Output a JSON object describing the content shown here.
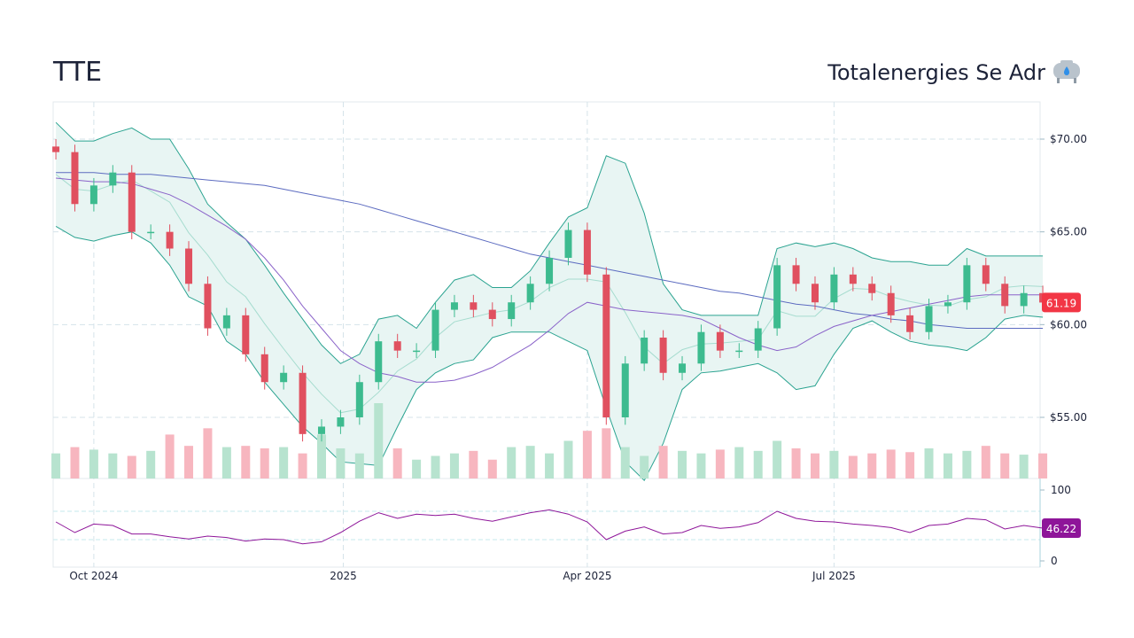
{
  "header": {
    "ticker": "TTE",
    "company": "Totalenergies Se Adr",
    "icon": "gas-tank-icon"
  },
  "colors": {
    "up": "#3dbb8f",
    "down": "#e0505f",
    "up_volume": "#b7e3cf",
    "down_volume": "#f7b6bf",
    "band_line": "#2aa390",
    "band_fill": "#e8f5f3",
    "band_mid": "#a6dccf",
    "sma_long": "#5c6bc0",
    "sma_short": "#8a63c9",
    "rsi": "#8e1599",
    "last_price_tag": "#f23645",
    "rsi_tag": "#8e1599"
  },
  "chart_data": {
    "type": "candlestick",
    "x_range": [
      "2024-09-16",
      "2025-09-15"
    ],
    "x_ticks": [
      {
        "label": "Oct 2024",
        "date": "2024-10-01"
      },
      {
        "label": "2025",
        "date": "2025-01-01"
      },
      {
        "label": "Apr 2025",
        "date": "2025-04-01"
      },
      {
        "label": "Jul 2025",
        "date": "2025-07-01"
      }
    ],
    "price_range": [
      51.2,
      72
    ],
    "price_ticks": [
      {
        "label": "$70.00",
        "value": 70
      },
      {
        "label": "$65.00",
        "value": 65
      },
      {
        "label": "$60.00",
        "value": 60
      },
      {
        "label": "$55.00",
        "value": 55
      }
    ],
    "last_price": "61.19",
    "dates": [
      "2024-09-17",
      "2024-09-24",
      "2024-10-01",
      "2024-10-08",
      "2024-10-15",
      "2024-10-22",
      "2024-10-29",
      "2024-11-05",
      "2024-11-12",
      "2024-11-19",
      "2024-11-26",
      "2024-12-03",
      "2024-12-10",
      "2024-12-17",
      "2024-12-24",
      "2024-12-31",
      "2025-01-07",
      "2025-01-14",
      "2025-01-21",
      "2025-01-28",
      "2025-02-04",
      "2025-02-11",
      "2025-02-18",
      "2025-02-25",
      "2025-03-04",
      "2025-03-11",
      "2025-03-18",
      "2025-03-25",
      "2025-04-01",
      "2025-04-08",
      "2025-04-15",
      "2025-04-22",
      "2025-04-29",
      "2025-05-06",
      "2025-05-13",
      "2025-05-20",
      "2025-05-27",
      "2025-06-03",
      "2025-06-10",
      "2025-06-17",
      "2025-06-24",
      "2025-07-01",
      "2025-07-08",
      "2025-07-15",
      "2025-07-22",
      "2025-07-29",
      "2025-08-05",
      "2025-08-12",
      "2025-08-19",
      "2025-08-26",
      "2025-09-02",
      "2025-09-09",
      "2025-09-16"
    ],
    "close": [
      69.3,
      66.5,
      67.5,
      68.2,
      65.0,
      65.0,
      64.1,
      62.2,
      59.8,
      60.5,
      58.4,
      56.9,
      57.4,
      54.1,
      54.5,
      55.0,
      56.9,
      59.1,
      58.6,
      58.6,
      60.8,
      61.2,
      60.8,
      60.3,
      61.2,
      62.2,
      63.6,
      65.1,
      62.7,
      55.0,
      57.9,
      59.3,
      57.4,
      57.9,
      59.6,
      58.6,
      58.6,
      59.8,
      63.2,
      62.2,
      61.2,
      62.7,
      62.2,
      61.7,
      60.5,
      59.6,
      61.0,
      61.2,
      63.2,
      62.2,
      61.0,
      61.7,
      61.19
    ],
    "volume": [
      2.0,
      2.5,
      2.3,
      2.0,
      1.8,
      2.2,
      3.5,
      2.6,
      4.0,
      2.5,
      2.6,
      2.4,
      2.5,
      2.0,
      3.5,
      2.4,
      2.0,
      6.0,
      2.4,
      1.5,
      1.8,
      2.0,
      2.2,
      1.5,
      2.5,
      2.6,
      2.0,
      3.0,
      3.8,
      4.0,
      2.5,
      1.8,
      2.6,
      2.2,
      2.0,
      2.3,
      2.5,
      2.2,
      3.0,
      2.4,
      2.0,
      2.2,
      1.8,
      2.0,
      2.3,
      2.1,
      2.4,
      2.0,
      2.2,
      2.6,
      2.0,
      1.9,
      2.0
    ],
    "bollinger_upper": [
      70.9,
      69.9,
      69.9,
      70.3,
      70.6,
      70.0,
      70.0,
      68.4,
      66.5,
      65.5,
      64.6,
      63.2,
      61.7,
      60.3,
      58.9,
      57.9,
      58.4,
      60.3,
      60.5,
      59.8,
      61.2,
      62.4,
      62.7,
      62.0,
      62.0,
      62.9,
      64.4,
      65.8,
      66.3,
      69.1,
      68.7,
      66.0,
      62.2,
      60.8,
      60.5,
      60.5,
      60.5,
      60.5,
      64.1,
      64.4,
      64.2,
      64.4,
      64.1,
      63.6,
      63.4,
      63.4,
      63.2,
      63.2,
      64.1,
      63.7,
      63.7,
      63.7,
      63.7
    ],
    "bollinger_lower": [
      65.3,
      64.7,
      64.5,
      64.8,
      65.0,
      64.4,
      63.2,
      61.5,
      61.0,
      59.1,
      58.4,
      56.9,
      55.7,
      54.5,
      53.6,
      52.6,
      52.5,
      52.4,
      54.5,
      56.5,
      57.4,
      57.9,
      58.1,
      59.3,
      59.6,
      59.6,
      59.6,
      59.1,
      58.6,
      55.5,
      52.6,
      51.6,
      53.6,
      56.5,
      57.4,
      57.5,
      57.7,
      57.9,
      57.4,
      56.5,
      56.7,
      58.4,
      59.8,
      60.2,
      59.6,
      59.1,
      58.9,
      58.8,
      58.6,
      59.3,
      60.3,
      60.5,
      60.4
    ],
    "sma_long": [
      68.2,
      68.2,
      68.2,
      68.1,
      68.1,
      68.1,
      68.0,
      67.9,
      67.8,
      67.7,
      67.6,
      67.5,
      67.3,
      67.1,
      66.9,
      66.7,
      66.5,
      66.2,
      65.9,
      65.6,
      65.3,
      65.0,
      64.7,
      64.4,
      64.1,
      63.8,
      63.6,
      63.4,
      63.2,
      63.0,
      62.8,
      62.6,
      62.4,
      62.2,
      62.0,
      61.8,
      61.7,
      61.5,
      61.3,
      61.1,
      61.0,
      60.8,
      60.6,
      60.5,
      60.3,
      60.2,
      60.0,
      59.9,
      59.8,
      59.8,
      59.8,
      59.8,
      59.8
    ],
    "sma_short": [
      67.9,
      67.8,
      67.7,
      67.7,
      67.6,
      67.3,
      67.0,
      66.5,
      65.9,
      65.3,
      64.6,
      63.6,
      62.4,
      61.0,
      59.8,
      58.6,
      57.9,
      57.4,
      57.2,
      56.9,
      56.9,
      57.0,
      57.3,
      57.7,
      58.3,
      58.9,
      59.7,
      60.6,
      61.2,
      61.0,
      60.8,
      60.7,
      60.6,
      60.5,
      60.3,
      59.8,
      59.3,
      58.9,
      58.6,
      58.8,
      59.4,
      59.9,
      60.2,
      60.5,
      60.7,
      60.9,
      61.1,
      61.3,
      61.5,
      61.6,
      61.6,
      61.6,
      61.6
    ],
    "rsi": [
      55,
      40,
      52,
      50,
      38,
      38,
      34,
      31,
      35,
      33,
      28,
      31,
      30,
      24,
      27,
      40,
      56,
      68,
      60,
      66,
      64,
      66,
      60,
      56,
      62,
      68,
      72,
      66,
      55,
      30,
      42,
      48,
      38,
      40,
      50,
      46,
      48,
      54,
      70,
      60,
      56,
      55,
      52,
      50,
      47,
      40,
      50,
      52,
      60,
      58,
      45,
      50,
      46.22
    ],
    "rsi_range": [
      0,
      100
    ],
    "rsi_ticks": [
      {
        "label": "100",
        "value": 100
      },
      {
        "label": "0",
        "value": 0
      }
    ],
    "rsi_levels": [
      70,
      30
    ],
    "last_rsi": "46.22"
  }
}
